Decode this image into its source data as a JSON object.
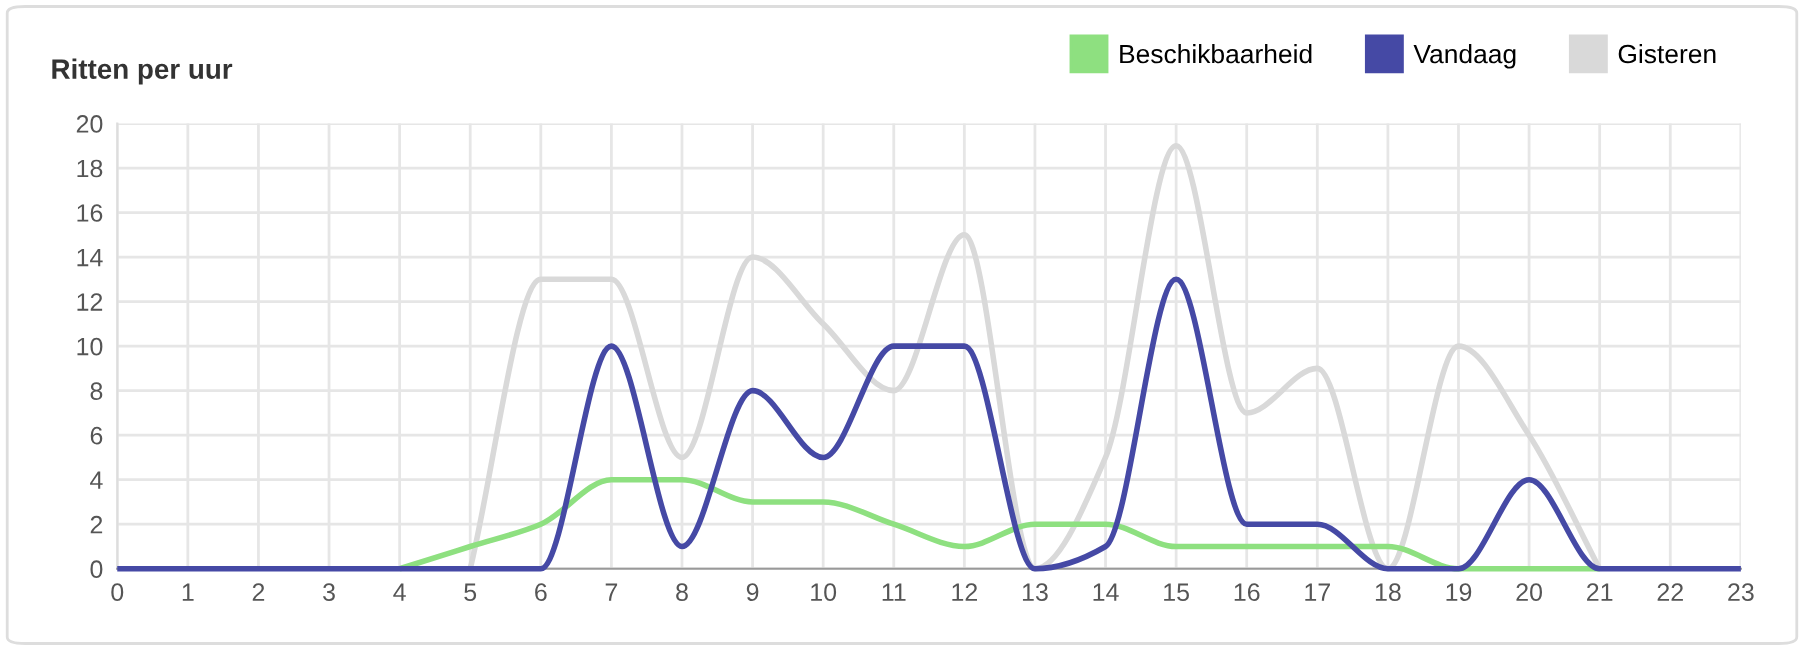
{
  "chart_data": {
    "type": "line",
    "title": "Ritten per uur",
    "categories": [
      "0",
      "1",
      "2",
      "3",
      "4",
      "5",
      "6",
      "7",
      "8",
      "9",
      "10",
      "11",
      "12",
      "13",
      "14",
      "15",
      "16",
      "17",
      "18",
      "19",
      "20",
      "21",
      "22",
      "23"
    ],
    "series": [
      {
        "name": "Beschikbaarheid",
        "color": "#8ee080",
        "values": [
          null,
          null,
          null,
          null,
          0,
          1,
          2,
          4,
          4,
          3,
          3,
          2,
          1,
          2,
          2,
          1,
          1,
          1,
          1,
          0,
          0,
          0,
          null,
          null
        ]
      },
      {
        "name": "Vandaag",
        "color": "#4549a5",
        "values": [
          0,
          0,
          0,
          0,
          0,
          0,
          0,
          10,
          1,
          8,
          5,
          10,
          10,
          0,
          1,
          13,
          2,
          2,
          0,
          0,
          4,
          0,
          0,
          0
        ]
      },
      {
        "name": "Gisteren",
        "color": "#d9d9d9",
        "values": [
          null,
          null,
          null,
          null,
          null,
          0,
          13,
          13,
          5,
          14,
          11,
          8,
          15,
          0,
          5,
          19,
          7,
          9,
          0,
          10,
          6,
          0,
          null,
          null
        ]
      }
    ],
    "ylim": [
      0,
      20
    ],
    "yticks": [
      0,
      2,
      4,
      6,
      8,
      10,
      12,
      14,
      16,
      18,
      20
    ],
    "grid": true,
    "legend": "top right",
    "marker": "none",
    "line_style": "solid"
  }
}
